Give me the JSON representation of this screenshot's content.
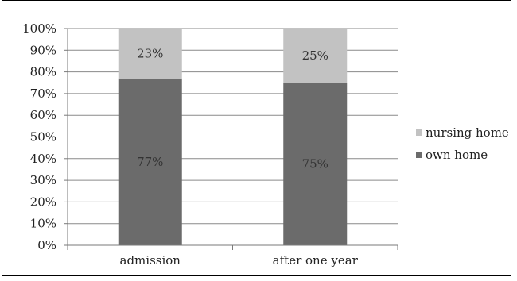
{
  "chart_data": {
    "type": "bar",
    "stacked": true,
    "percent": true,
    "categories": [
      "admission",
      "after one year"
    ],
    "series": [
      {
        "name": "own home",
        "values": [
          77,
          75
        ],
        "labels": [
          "77%",
          "75%"
        ],
        "color": "#6b6b6b"
      },
      {
        "name": "nursing home",
        "values": [
          23,
          25
        ],
        "labels": [
          "23%",
          "25%"
        ],
        "color": "#c2c2c2"
      }
    ],
    "yticks": [
      "0%",
      "10%",
      "20%",
      "30%",
      "40%",
      "50%",
      "60%",
      "70%",
      "80%",
      "90%",
      "100%"
    ],
    "ylim": [
      0,
      100
    ],
    "grid": true,
    "legend": "right",
    "colors": {
      "grid": "#8a8a8a",
      "axis": "#7a7a7a"
    }
  }
}
